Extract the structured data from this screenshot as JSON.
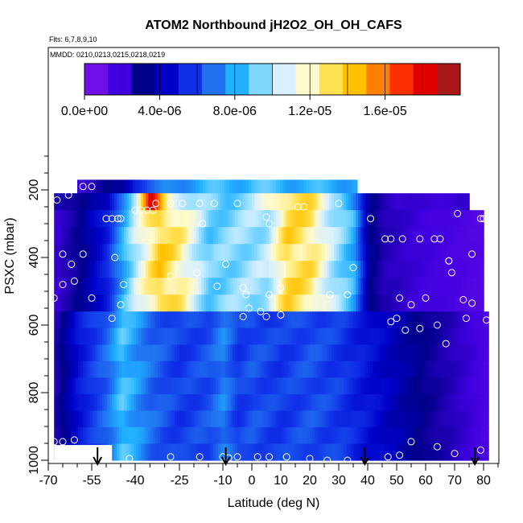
{
  "chart_data": {
    "type": "heatmap",
    "title": "ATOM2 Northbound jH2O2_OH_OH_CAFS",
    "flights_note": "Flts: 6,7,8,9,10",
    "dates_note": "MMDD: 0210,0213,0215,0218,0219",
    "xlabel": "Latitude (deg N)",
    "ylabel": "PSXC (mbar)",
    "xlim": [
      -70,
      85
    ],
    "ylim": [
      1000,
      100
    ],
    "x_ticks": [
      -70,
      -55,
      -40,
      -25,
      -10,
      0,
      10,
      20,
      30,
      40,
      50,
      60,
      70,
      80
    ],
    "x_tick_labels": [
      "-70",
      "-55",
      "-40",
      "-25",
      "-10",
      "0",
      "10",
      "20",
      "30",
      "40",
      "50",
      "60",
      "70",
      "80"
    ],
    "y_ticks": [
      200,
      400,
      600,
      800,
      1000
    ],
    "y_tick_labels": [
      "200",
      "400",
      "600",
      "800",
      "1000"
    ],
    "colorbar": {
      "min": 0,
      "max": 2e-05,
      "tick_labels": [
        "0.0e+00",
        "4.0e-06",
        "8.0e-06",
        "1.2e-05",
        "1.6e-05"
      ],
      "tick_values": [
        0,
        4e-06,
        8e-06,
        1.2e-05,
        1.6e-05
      ],
      "colors": [
        "#7010e8",
        "#4000e0",
        "#00008a",
        "#0000c8",
        "#1030e8",
        "#2070f0",
        "#20b0ff",
        "#80d8ff",
        "#d8f0ff",
        "#fffacc",
        "#ffe050",
        "#ffc000",
        "#ff8000",
        "#ff3000",
        "#e00000",
        "#a81818"
      ]
    },
    "pressure_bands": [
      {
        "p_top": 170,
        "p_bot": 210,
        "x0": -60,
        "x1": 36,
        "values_x": [
          -60,
          -45,
          -40,
          -20,
          0,
          20,
          36
        ],
        "values": [
          1.5e-06,
          3e-06,
          5.5e-06,
          8e-06,
          8.5e-06,
          8e-06,
          8e-06
        ]
      },
      {
        "p_top": 210,
        "p_bot": 260,
        "x0": -68,
        "x1": 75,
        "values_x": [
          -68,
          -50,
          -40,
          -35,
          -30,
          -20,
          -10,
          0,
          10,
          20,
          30,
          40,
          50,
          60,
          75
        ],
        "values": [
          2e-06,
          3.5e-06,
          1.1e-05,
          1.8e-05,
          1.3e-05,
          9.5e-06,
          9e-06,
          9.5e-06,
          1.35e-05,
          1.3e-05,
          1e-05,
          3e-06,
          1.5e-06,
          1.5e-06,
          1.5e-06
        ]
      },
      {
        "p_top": 260,
        "p_bot": 560,
        "x0": -68,
        "x1": 80,
        "values_x": [
          -68,
          -60,
          -50,
          -40,
          -32,
          -25,
          -15,
          -5,
          5,
          12,
          20,
          28,
          35,
          40,
          45,
          55,
          65,
          80
        ],
        "values": [
          1.5e-06,
          2.5e-06,
          5e-06,
          1.05e-05,
          1.4e-05,
          1.25e-05,
          9e-06,
          9.5e-06,
          1e-05,
          1.35e-05,
          1.3e-05,
          1e-05,
          8e-06,
          3e-06,
          2e-06,
          1.5e-06,
          1.2e-06,
          8e-07
        ]
      },
      {
        "p_top": 560,
        "p_bot": 1000,
        "x0": -68,
        "x1": 81,
        "values_x": [
          -68,
          -60,
          -50,
          -45,
          -35,
          -25,
          -15,
          -10,
          -5,
          0,
          10,
          20,
          30,
          40,
          50,
          60,
          70,
          81
        ],
        "values": [
          2e-06,
          4.5e-06,
          6.5e-06,
          8.5e-06,
          6.5e-06,
          5.5e-06,
          6e-06,
          7e-06,
          5.5e-06,
          6e-06,
          5.5e-06,
          6e-06,
          5.5e-06,
          4.5e-06,
          3.5e-06,
          2.5e-06,
          1.8e-06,
          1e-06
        ]
      }
    ],
    "flight_points": [
      [
        -58,
        190
      ],
      [
        -55,
        190
      ],
      [
        -63,
        215
      ],
      [
        -67,
        230
      ],
      [
        -33,
        240
      ],
      [
        -18,
        240
      ],
      [
        -13,
        240
      ],
      [
        -5,
        240
      ],
      [
        30,
        240
      ],
      [
        -40,
        260
      ],
      [
        -38,
        260
      ],
      [
        -36,
        260
      ],
      [
        -34,
        260
      ],
      [
        -28,
        240
      ],
      [
        -24,
        240
      ],
      [
        16,
        250
      ],
      [
        18,
        250
      ],
      [
        5,
        280
      ],
      [
        -50,
        285
      ],
      [
        -48,
        285
      ],
      [
        -46,
        285
      ],
      [
        -45,
        285
      ],
      [
        41,
        285
      ],
      [
        71,
        270
      ],
      [
        80,
        285
      ],
      [
        -17,
        300
      ],
      [
        6,
        300
      ],
      [
        46,
        345
      ],
      [
        48,
        345
      ],
      [
        52,
        345
      ],
      [
        58,
        345
      ],
      [
        63,
        345
      ],
      [
        65,
        345
      ],
      [
        79,
        285
      ],
      [
        76,
        390
      ],
      [
        -65,
        390
      ],
      [
        -58,
        390
      ],
      [
        -47,
        400
      ],
      [
        -62,
        420
      ],
      [
        -9,
        420
      ],
      [
        35,
        430
      ],
      [
        68,
        410
      ],
      [
        68,
        410
      ],
      [
        69,
        445
      ],
      [
        -28,
        455
      ],
      [
        -19,
        445
      ],
      [
        -44,
        480
      ],
      [
        -65,
        480
      ],
      [
        -61,
        470
      ],
      [
        -12,
        485
      ],
      [
        -3,
        490
      ],
      [
        10,
        490
      ],
      [
        -2,
        510
      ],
      [
        6,
        510
      ],
      [
        -55,
        520
      ],
      [
        -68,
        520
      ],
      [
        -45,
        540
      ],
      [
        -1,
        550
      ],
      [
        10,
        570
      ],
      [
        5,
        575
      ],
      [
        3,
        560
      ],
      [
        27,
        510
      ],
      [
        33,
        510
      ],
      [
        55,
        540
      ],
      [
        60,
        520
      ],
      [
        73,
        525
      ],
      [
        76,
        535
      ],
      [
        51,
        520
      ],
      [
        48,
        590
      ],
      [
        50,
        580
      ],
      [
        -48,
        580
      ],
      [
        53,
        615
      ],
      [
        58,
        610
      ],
      [
        64,
        600
      ],
      [
        -3,
        575
      ],
      [
        74,
        580
      ],
      [
        81,
        585
      ],
      [
        67,
        655
      ],
      [
        -68,
        945
      ],
      [
        -65,
        945
      ],
      [
        -61,
        940
      ],
      [
        55,
        945
      ],
      [
        64,
        960
      ],
      [
        79,
        970
      ],
      [
        -42,
        995
      ],
      [
        -28,
        990
      ],
      [
        -18,
        990
      ],
      [
        -10,
        990
      ],
      [
        -8,
        993
      ],
      [
        -5,
        990
      ],
      [
        2,
        990
      ],
      [
        6,
        990
      ],
      [
        12,
        990
      ],
      [
        20,
        995
      ],
      [
        26,
        1000
      ],
      [
        33,
        1000
      ],
      [
        47,
        990
      ],
      [
        51,
        985
      ],
      [
        70,
        980
      ]
    ],
    "arrows_lat": [
      -53,
      -9,
      39,
      77
    ]
  }
}
